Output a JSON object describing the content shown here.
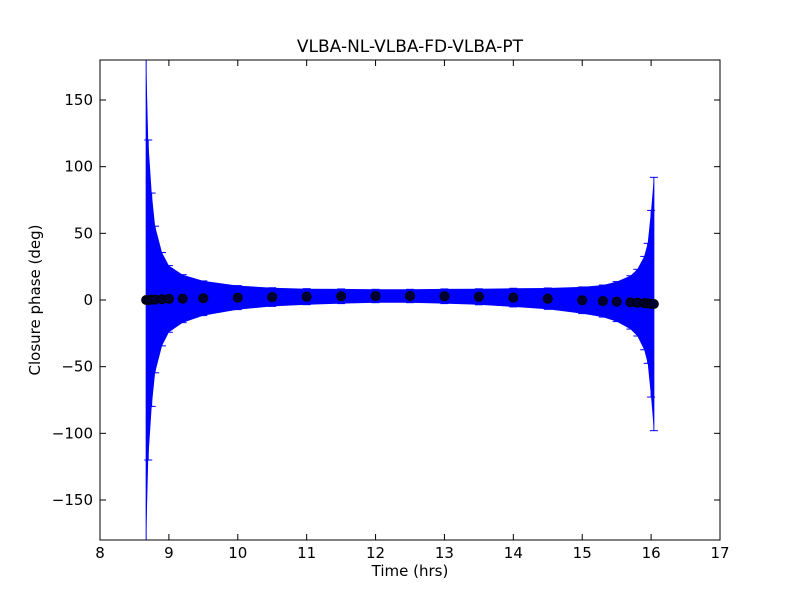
{
  "chart_data": {
    "type": "scatter",
    "title": "VLBA-NL-VLBA-FD-VLBA-PT",
    "xlabel": "Time (hrs)",
    "ylabel": "Closure phase (deg)",
    "xlim": [
      8,
      17
    ],
    "ylim": [
      -180,
      180
    ],
    "xticks": [
      8,
      9,
      10,
      11,
      12,
      13,
      14,
      15,
      16,
      17
    ],
    "yticks": [
      -150,
      -100,
      -50,
      0,
      50,
      100,
      150
    ],
    "grid": false,
    "legend": "none",
    "colors": {
      "errorbar": "#0000ff",
      "marker": "#000000",
      "marker_fill": "#000033"
    },
    "series": [
      {
        "x": [
          8.67,
          8.7,
          8.75,
          8.8,
          8.9,
          9.0,
          9.2,
          9.5,
          10.0,
          10.5,
          11.0,
          11.5,
          12.0,
          12.5,
          13.0,
          13.5,
          14.0,
          14.5,
          15.0,
          15.3,
          15.5,
          15.7,
          15.8,
          15.9,
          15.95,
          16.0,
          16.04
        ],
        "y": [
          0,
          0,
          0.2,
          0.4,
          0.6,
          0.8,
          1.0,
          1.3,
          1.8,
          2.2,
          2.5,
          2.8,
          3.0,
          3.0,
          2.8,
          2.4,
          1.8,
          1.0,
          -0.2,
          -0.8,
          -1.2,
          -1.8,
          -2.0,
          -2.3,
          -2.5,
          -2.8,
          -3.0
        ],
        "yerr": [
          180,
          120,
          80,
          55,
          35,
          25,
          18,
          13,
          9,
          7,
          6,
          5.5,
          5,
          5,
          5.5,
          6,
          7,
          8,
          10,
          12,
          15,
          20,
          25,
          35,
          45,
          70,
          95
        ]
      }
    ]
  }
}
